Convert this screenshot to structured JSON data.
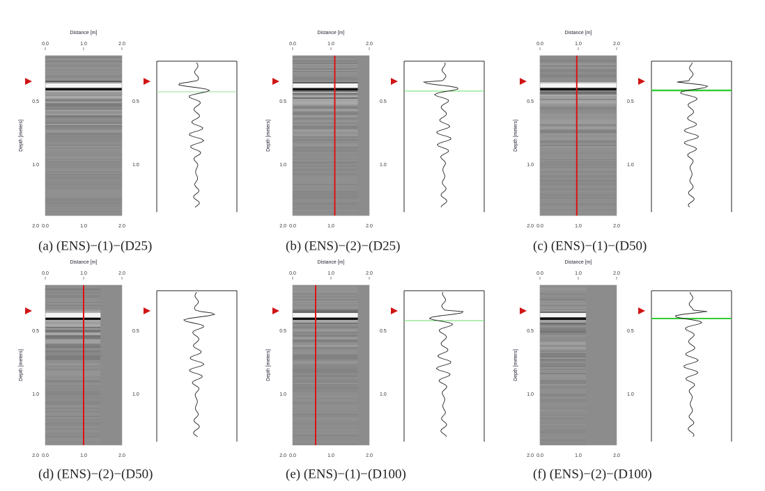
{
  "panels": [
    {
      "caption": "(a) (ENS)−(1)−(D25)",
      "x_label": "Distance [m]",
      "y_label": "Depth [meters]",
      "x_ticks": [
        "0.0",
        "1.0",
        "2.0"
      ],
      "y_ticks": [
        "0.5",
        "1.0",
        "2.0"
      ]
    },
    {
      "caption": "(b) (ENS)−(2)−(D25)",
      "x_label": "Distance [m]",
      "y_label": "Depth [meters]",
      "x_ticks": [
        "0.0",
        "1.0",
        "2.0"
      ],
      "y_ticks": [
        "0.5",
        "1.0",
        "2.0"
      ]
    },
    {
      "caption": "(c) (ENS)−(1)−(D50)",
      "x_label": "Distance [m]",
      "y_label": "Depth [meters]",
      "x_ticks": [
        "0.0",
        "1.0",
        "2.0"
      ],
      "y_ticks": [
        "0.5",
        "1.0",
        "2.0"
      ]
    },
    {
      "caption": "(d) (ENS)−(2)−(D50)",
      "x_label": "Distance [m]",
      "y_label": "Depth [meters]",
      "x_ticks": [
        "0.0",
        "1.0",
        "2.0"
      ],
      "y_ticks": [
        "0.5",
        "1.0",
        "2.0"
      ]
    },
    {
      "caption": "(e) (ENS)−(1)−(D100)",
      "x_label": "Distance [m]",
      "y_label": "Depth [meters]",
      "x_ticks": [
        "0.0",
        "1.0",
        "2.0"
      ],
      "y_ticks": [
        "0.5",
        "1.0",
        "2.0"
      ]
    },
    {
      "caption": "(f) (ENS)−(2)−(D100)",
      "x_label": "Distance [m]",
      "y_label": "Depth [meters]",
      "x_ticks": [
        "0.0",
        "1.0",
        "2.0"
      ],
      "y_ticks": [
        "0.5",
        "1.0",
        "2.0"
      ]
    }
  ]
}
